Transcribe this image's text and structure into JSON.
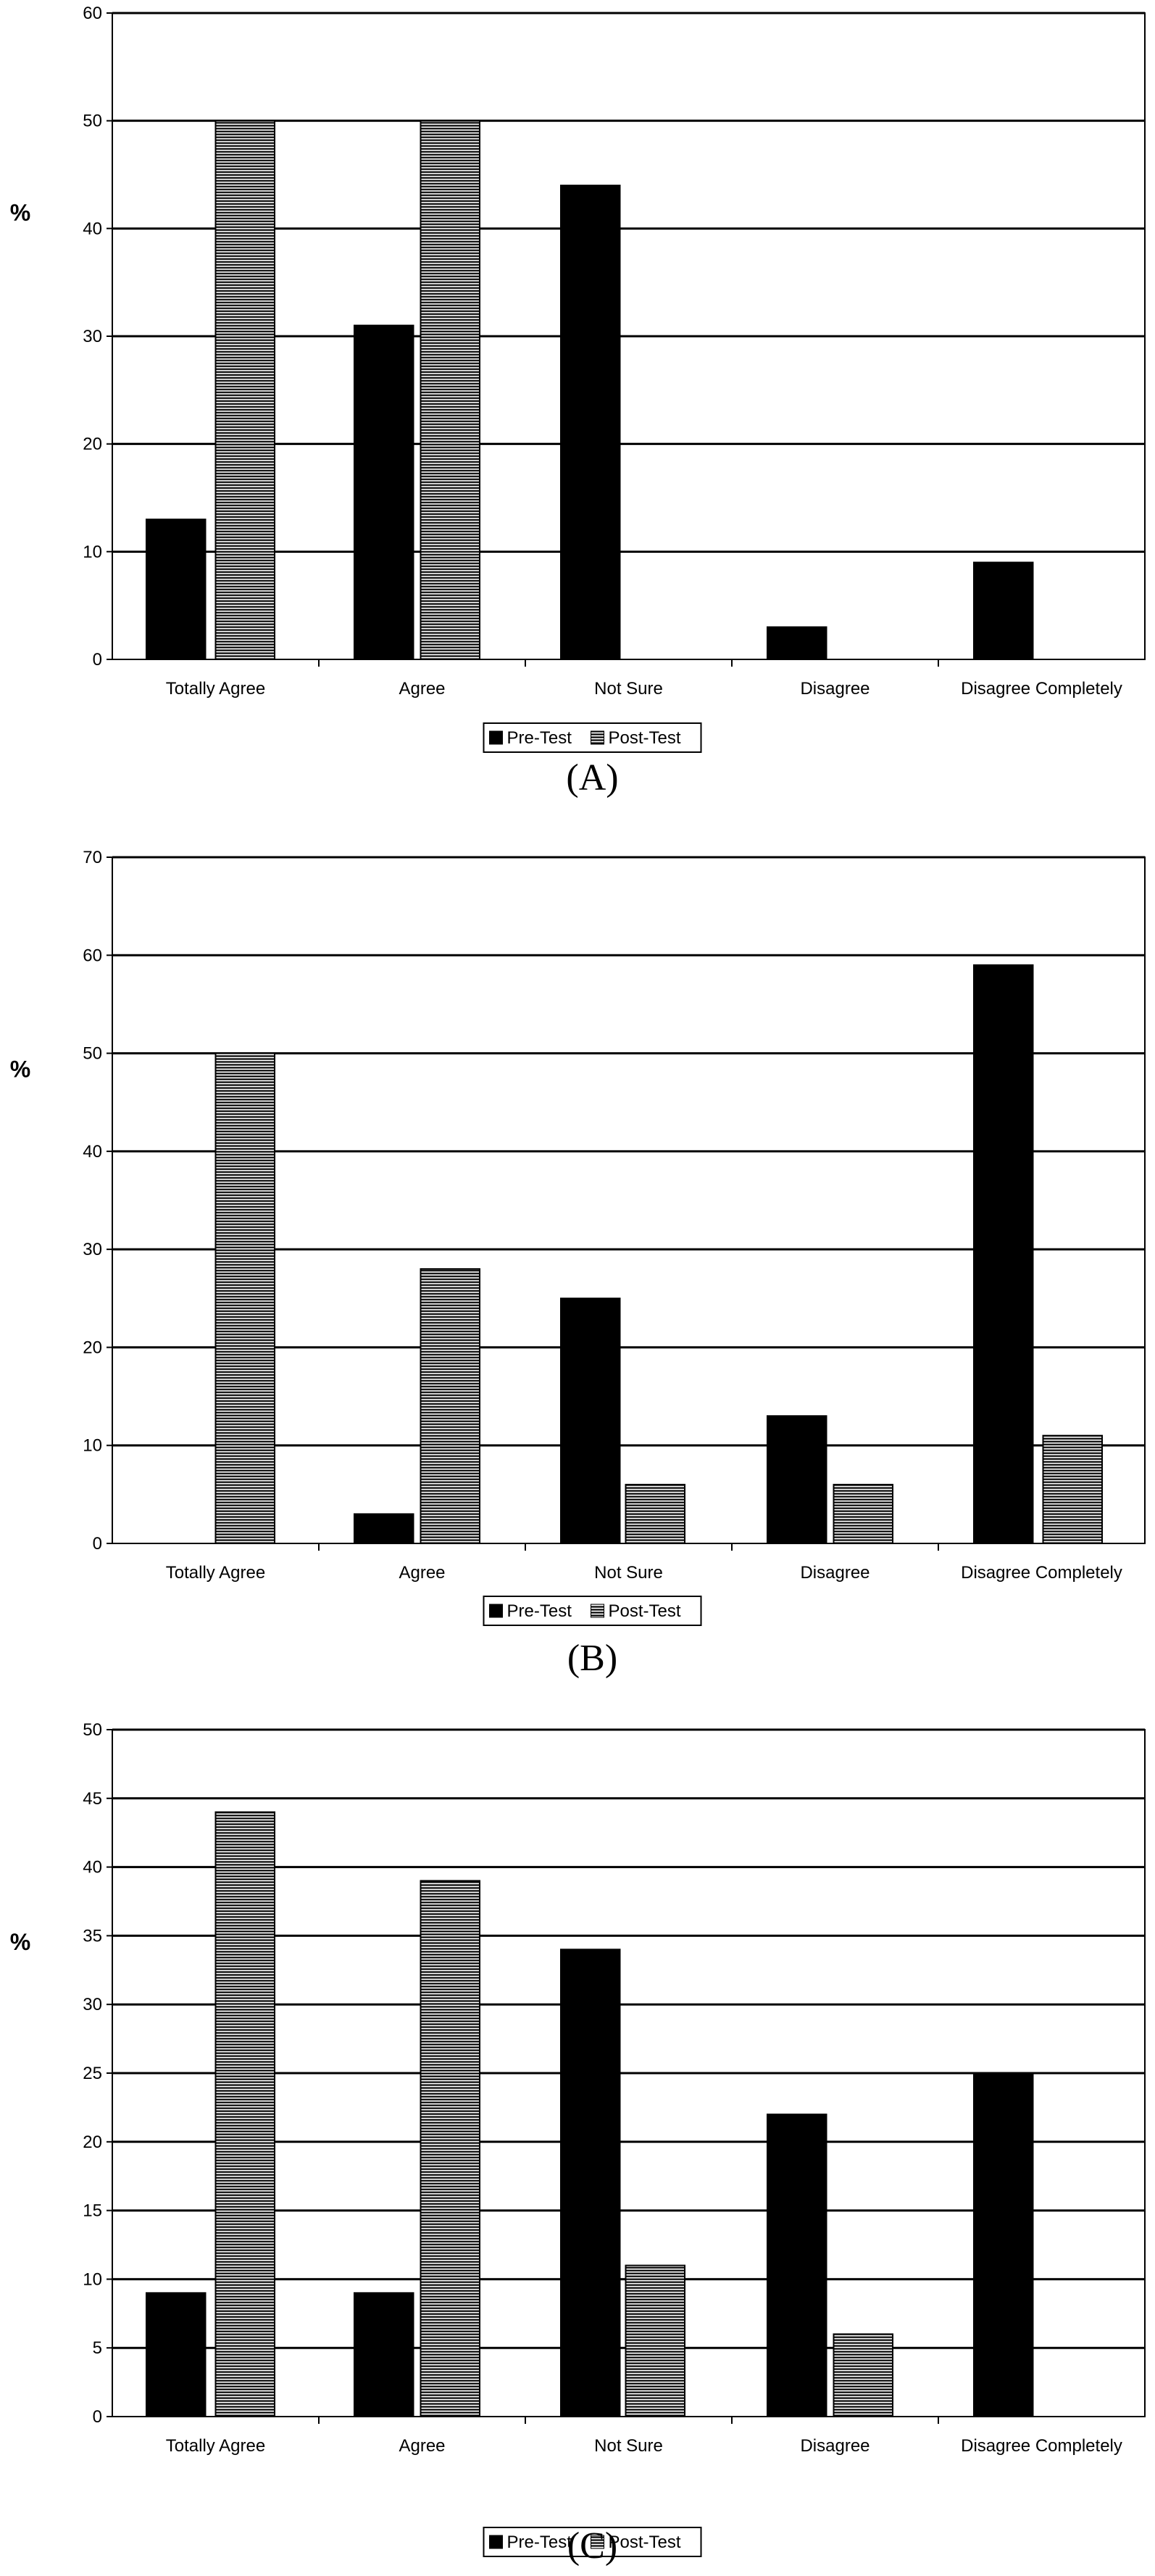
{
  "chart_data": [
    {
      "type": "bar",
      "panel_label": "(A)",
      "ylabel": "%",
      "ylim": [
        0,
        60
      ],
      "yticks": [
        "0",
        "10",
        "20",
        "30",
        "40",
        "50",
        "60"
      ],
      "categories": [
        "Totally Agree",
        "Agree",
        "Not Sure",
        "Disagree",
        "Disagree Completely"
      ],
      "series": [
        {
          "name": "Pre-Test",
          "values": [
            13,
            31,
            44,
            3,
            9
          ]
        },
        {
          "name": "Post-Test",
          "values": [
            50,
            50,
            0,
            0,
            0
          ]
        }
      ],
      "grid": true,
      "legend": "bottom"
    },
    {
      "type": "bar",
      "panel_label": "(B)",
      "ylabel": "%",
      "ylim": [
        0,
        70
      ],
      "yticks": [
        "0",
        "10",
        "20",
        "30",
        "40",
        "50",
        "60",
        "70"
      ],
      "categories": [
        "Totally Agree",
        "Agree",
        "Not Sure",
        "Disagree",
        "Disagree Completely"
      ],
      "series": [
        {
          "name": "Pre-Test",
          "values": [
            0,
            3,
            25,
            13,
            59
          ]
        },
        {
          "name": "Post-Test",
          "values": [
            50,
            28,
            6,
            6,
            11
          ]
        }
      ],
      "grid": true,
      "legend": "bottom"
    },
    {
      "type": "bar",
      "panel_label": "(C)",
      "ylabel": "%",
      "ylim": [
        0,
        50
      ],
      "yticks": [
        "0",
        "5",
        "10",
        "15",
        "20",
        "25",
        "30",
        "35",
        "40",
        "45",
        "50"
      ],
      "categories": [
        "Totally Agree",
        "Agree",
        "Not Sure",
        "Disagree",
        "Disagree Completely"
      ],
      "series": [
        {
          "name": "Pre-Test",
          "values": [
            9,
            9,
            34,
            22,
            25
          ]
        },
        {
          "name": "Post-Test",
          "values": [
            44,
            39,
            11,
            6,
            0
          ]
        }
      ],
      "grid": true,
      "legend": "bottom"
    }
  ],
  "colors": {
    "pre_fill": "#000000",
    "post_fill": "#ffffff",
    "grid": "#000000"
  }
}
